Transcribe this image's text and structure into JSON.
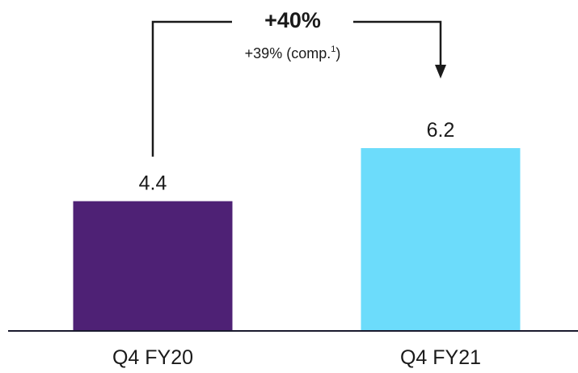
{
  "chart_data": {
    "type": "bar",
    "categories": [
      "Q4 FY20",
      "Q4 FY21"
    ],
    "values": [
      4.4,
      6.2
    ],
    "value_labels": [
      "4.4",
      "6.2"
    ],
    "colors": [
      "#4e2175",
      "#6cdcfb"
    ],
    "title": "",
    "xlabel": "",
    "ylabel": "",
    "ylim": [
      0,
      6.86
    ],
    "grid": false,
    "legend": "none"
  },
  "annotation": {
    "growth": "+40%",
    "comparable_prefix": "+39% (comp.",
    "comparable_superscript": "1",
    "comparable_suffix": ")",
    "line_color": "#1a1a1a"
  }
}
